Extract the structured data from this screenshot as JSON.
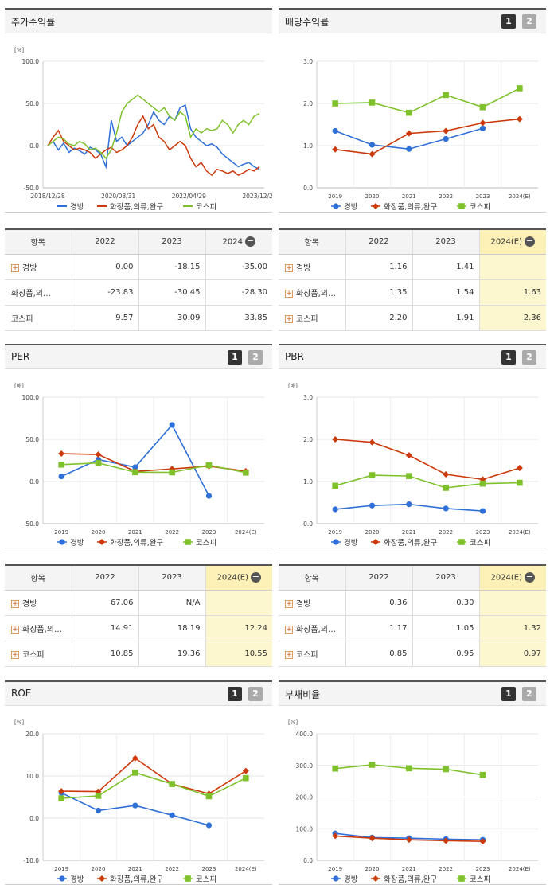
{
  "colors": {
    "series1": "#2f6fd8",
    "series2": "#cc3a0b",
    "series3": "#7fc12b"
  },
  "panels": [
    {
      "id": "stock",
      "title": "주가수익률",
      "unit": "[%]",
      "buttons": []
    },
    {
      "id": "div",
      "title": "배당수익률",
      "unit": "",
      "buttons": [
        "1",
        "2"
      ]
    },
    {
      "id": "per",
      "title": "PER",
      "unit": "[배]",
      "buttons": [
        "1",
        "2"
      ]
    },
    {
      "id": "pbr",
      "title": "PBR",
      "unit": "[배]",
      "buttons": [
        "1",
        "2"
      ]
    },
    {
      "id": "roe",
      "title": "ROE",
      "unit": "[%]",
      "buttons": [
        "1",
        "2"
      ]
    },
    {
      "id": "debt",
      "title": "부채비율",
      "unit": "[%]",
      "buttons": [
        "1",
        "2"
      ]
    }
  ],
  "legend": [
    "경방",
    "화장품,의류,완구",
    "코스피"
  ],
  "tables": [
    {
      "id": "stock_table",
      "head": [
        "항목",
        "2022",
        "2023",
        "2024"
      ],
      "last_is_estimate": false,
      "rows": [
        [
          "경방",
          "0.00",
          "-18.15",
          "-35.00"
        ],
        [
          "화장품,의…",
          "-23.83",
          "-30.45",
          "-28.30"
        ],
        [
          "코스피",
          "9.57",
          "30.09",
          "33.85"
        ]
      ],
      "plus": [
        true,
        false,
        false
      ]
    },
    {
      "id": "div_table",
      "head": [
        "항목",
        "2022",
        "2023",
        "2024(E)"
      ],
      "last_is_estimate": true,
      "rows": [
        [
          "경방",
          "1.16",
          "1.41",
          ""
        ],
        [
          "화장품,의…",
          "1.35",
          "1.54",
          "1.63"
        ],
        [
          "코스피",
          "2.20",
          "1.91",
          "2.36"
        ]
      ],
      "plus": [
        true,
        true,
        true
      ]
    },
    {
      "id": "per_table",
      "head": [
        "항목",
        "2022",
        "2023",
        "2024(E)"
      ],
      "last_is_estimate": true,
      "rows": [
        [
          "경방",
          "67.06",
          "N/A",
          ""
        ],
        [
          "화장품,의…",
          "14.91",
          "18.19",
          "12.24"
        ],
        [
          "코스피",
          "10.85",
          "19.36",
          "10.55"
        ]
      ],
      "plus": [
        true,
        true,
        true
      ]
    },
    {
      "id": "pbr_table",
      "head": [
        "항목",
        "2022",
        "2023",
        "2024(E)"
      ],
      "last_is_estimate": true,
      "rows": [
        [
          "경방",
          "0.36",
          "0.30",
          ""
        ],
        [
          "화장품,의…",
          "1.17",
          "1.05",
          "1.32"
        ],
        [
          "코스피",
          "0.85",
          "0.95",
          "0.97"
        ]
      ],
      "plus": [
        true,
        true,
        true
      ]
    }
  ],
  "chart_data": [
    {
      "id": "stock",
      "type": "line",
      "ylim": [
        -50,
        100
      ],
      "yticks": [
        "100.0",
        "50.0",
        "0.0",
        "-50.0"
      ],
      "xticks": [
        "2018/12/28",
        "2020/08/31",
        "2022/04/29",
        "2023/12/28"
      ],
      "series": [
        {
          "name": "경방",
          "values": [
            0,
            5,
            -5,
            3,
            -8,
            -3,
            -6,
            -10,
            -2,
            -5,
            -10,
            -25,
            30,
            5,
            10,
            0,
            5,
            10,
            15,
            25,
            40,
            30,
            25,
            35,
            30,
            45,
            48,
            20,
            10,
            5,
            0,
            2,
            -2,
            -10,
            -15,
            -20,
            -25,
            -22,
            -20,
            -25,
            -28
          ]
        },
        {
          "name": "화장품,의류,완구",
          "values": [
            0,
            10,
            18,
            5,
            0,
            -5,
            -3,
            -5,
            -8,
            -15,
            -10,
            -5,
            -2,
            -8,
            -5,
            0,
            10,
            25,
            35,
            20,
            25,
            10,
            5,
            -5,
            0,
            5,
            0,
            -15,
            -25,
            -20,
            -30,
            -35,
            -28,
            -30,
            -33,
            -30,
            -35,
            -32,
            -28,
            -30,
            -25
          ]
        },
        {
          "name": "코스피",
          "values": [
            0,
            5,
            10,
            8,
            2,
            0,
            5,
            2,
            -5,
            -3,
            -8,
            -15,
            -5,
            15,
            40,
            50,
            55,
            60,
            55,
            50,
            45,
            40,
            45,
            35,
            30,
            40,
            35,
            10,
            20,
            15,
            20,
            18,
            20,
            30,
            25,
            15,
            25,
            30,
            25,
            35,
            38
          ]
        }
      ]
    },
    {
      "id": "div",
      "type": "line",
      "ylim": [
        0,
        3
      ],
      "yticks": [
        "3.0",
        "2.0",
        "1.0",
        "0.0"
      ],
      "categories": [
        "2019",
        "2020",
        "2021",
        "2022",
        "2023",
        "2024(E)"
      ],
      "series": [
        {
          "name": "경방",
          "values": [
            1.35,
            1.02,
            0.92,
            1.16,
            1.41,
            null
          ]
        },
        {
          "name": "화장품,의류,완구",
          "values": [
            0.91,
            0.8,
            1.29,
            1.35,
            1.54,
            1.63
          ]
        },
        {
          "name": "코스피",
          "values": [
            2.0,
            2.02,
            1.78,
            2.2,
            1.91,
            2.36
          ]
        }
      ]
    },
    {
      "id": "per",
      "type": "line",
      "ylim": [
        -50,
        100
      ],
      "yticks": [
        "100.0",
        "50.0",
        "0.0",
        "-50.0"
      ],
      "categories": [
        "2019",
        "2020",
        "2021",
        "2022",
        "2023",
        "2024(E)"
      ],
      "series": [
        {
          "name": "경방",
          "values": [
            6,
            26,
            17,
            67.06,
            -17,
            null
          ]
        },
        {
          "name": "화장품,의류,완구",
          "values": [
            33,
            32,
            12,
            14.91,
            18.19,
            12.24
          ]
        },
        {
          "name": "코스피",
          "values": [
            20,
            22,
            11,
            10.85,
            19.36,
            10.55
          ]
        }
      ]
    },
    {
      "id": "pbr",
      "type": "line",
      "ylim": [
        0,
        3
      ],
      "yticks": [
        "3.0",
        "2.0",
        "1.0",
        "0.0"
      ],
      "categories": [
        "2019",
        "2020",
        "2021",
        "2022",
        "2023",
        "2024(E)"
      ],
      "series": [
        {
          "name": "경방",
          "values": [
            0.34,
            0.43,
            0.46,
            0.36,
            0.3,
            null
          ]
        },
        {
          "name": "화장품,의류,완구",
          "values": [
            2.0,
            1.93,
            1.62,
            1.17,
            1.05,
            1.32
          ]
        },
        {
          "name": "코스피",
          "values": [
            0.9,
            1.15,
            1.13,
            0.85,
            0.95,
            0.97
          ]
        }
      ]
    },
    {
      "id": "roe",
      "type": "line",
      "ylim": [
        -10,
        20
      ],
      "yticks": [
        "20.0",
        "10.0",
        "0.0",
        "-10.0"
      ],
      "categories": [
        "2019",
        "2020",
        "2021",
        "2022",
        "2023",
        "2024(E)"
      ],
      "series": [
        {
          "name": "경방",
          "values": [
            6,
            1.8,
            3,
            0.7,
            -1.7,
            null
          ]
        },
        {
          "name": "화장품,의류,완구",
          "values": [
            6.4,
            6.3,
            14.2,
            8.1,
            5.8,
            11.2
          ]
        },
        {
          "name": "코스피",
          "values": [
            4.7,
            5.3,
            10.8,
            8.1,
            5.2,
            9.5
          ]
        }
      ]
    },
    {
      "id": "debt",
      "type": "line",
      "ylim": [
        0,
        400
      ],
      "yticks": [
        "400.0",
        "300.0",
        "200.0",
        "100.0",
        "0.0"
      ],
      "categories": [
        "2019",
        "2020",
        "2021",
        "2022",
        "2023",
        "2024(E)"
      ],
      "series": [
        {
          "name": "경방",
          "values": [
            85,
            72,
            70,
            67,
            65,
            null
          ]
        },
        {
          "name": "화장품,의류,완구",
          "values": [
            77,
            70,
            65,
            62,
            60,
            null
          ]
        },
        {
          "name": "코스피",
          "values": [
            290,
            302,
            291,
            288,
            270,
            null
          ]
        }
      ]
    }
  ]
}
